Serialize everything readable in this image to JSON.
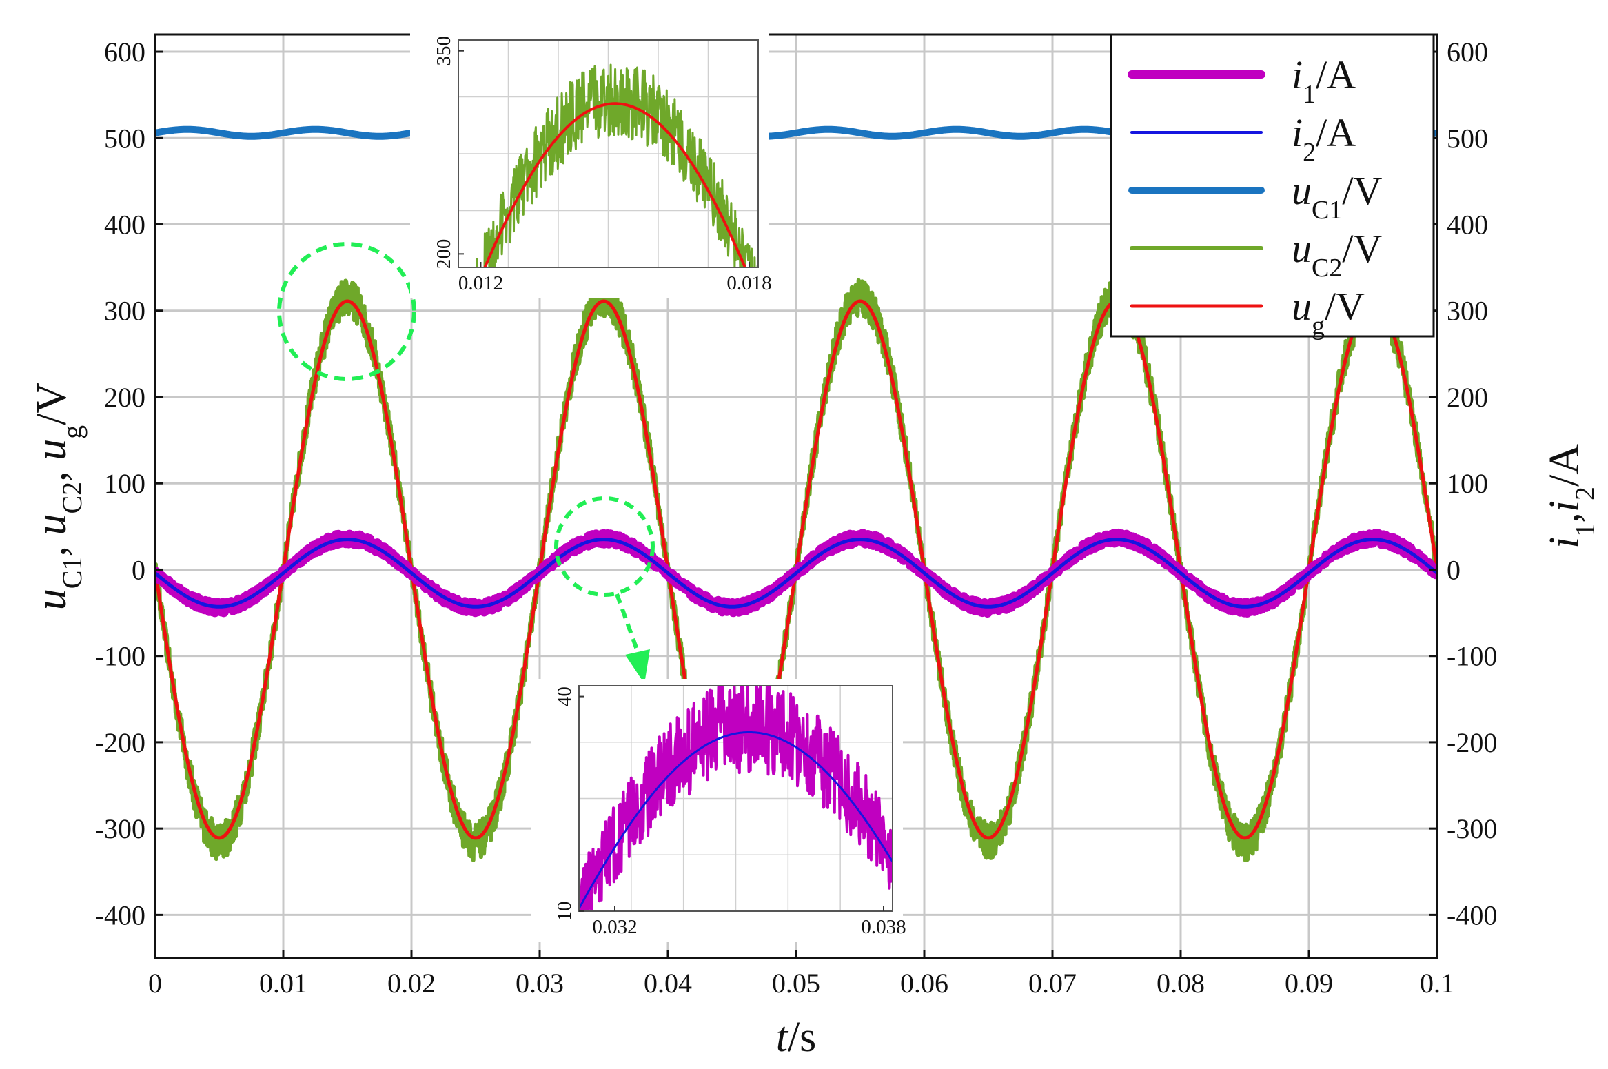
{
  "chart_data": [
    {
      "type": "line",
      "x": {
        "label_var": "t",
        "label_unit": "/s",
        "lim": [
          0,
          0.1
        ],
        "ticks": [
          "0",
          "0.01",
          "0.02",
          "0.03",
          "0.04",
          "0.05",
          "0.06",
          "0.07",
          "0.08",
          "0.09",
          "0.1"
        ]
      },
      "y_left": {
        "label": [
          "u",
          "C1",
          ", ",
          "u",
          "C2",
          ", ",
          "u",
          "g",
          "/V"
        ],
        "lim": [
          -450,
          620
        ],
        "ticks": [
          "600",
          "500",
          "400",
          "300",
          "200",
          "100",
          "0",
          "-100",
          "-200",
          "-300",
          "-400"
        ]
      },
      "y_right": {
        "label": [
          "i",
          "1",
          ",",
          "i",
          "2",
          "/A"
        ],
        "ticks": [
          "600",
          "500",
          "400",
          "300",
          "200",
          "100",
          "0",
          "-100",
          "-200",
          "-300",
          "-400"
        ]
      },
      "grid": true,
      "legend_position": "top-right",
      "series": [
        {
          "key": "i1",
          "legend": [
            "i",
            "1",
            "/A"
          ],
          "color": "#c000c0",
          "kind": "sine_ripple",
          "offset": -4,
          "amplitude": 40,
          "frequency_hz": 50,
          "phase_deg": 180,
          "ripple": 6
        },
        {
          "key": "i2",
          "legend": [
            "i",
            "2",
            "/A"
          ],
          "color": "#1515e0",
          "kind": "sine",
          "offset": -4,
          "amplitude": 39,
          "frequency_hz": 50,
          "phase_deg": 180
        },
        {
          "key": "uC1",
          "legend": [
            "u",
            "C1",
            "/V"
          ],
          "color": "#1a74c0",
          "kind": "sine",
          "offset": 506,
          "amplitude": 4,
          "frequency_hz": 100,
          "phase_deg": 0
        },
        {
          "key": "uC2",
          "legend": [
            "u",
            "C2",
            "/V"
          ],
          "color": "#6fa82a",
          "kind": "sine_ripple",
          "offset": 0,
          "amplitude": 315,
          "frequency_hz": 50,
          "phase_deg": 180,
          "ripple": 22
        },
        {
          "key": "ug",
          "legend": [
            "u",
            "g",
            "/V"
          ],
          "color": "#ee1111",
          "kind": "sine",
          "offset": 0,
          "amplitude": 311,
          "frequency_hz": 50,
          "phase_deg": 180
        }
      ]
    },
    {
      "type": "line",
      "note_text": "",
      "x": {
        "lim": [
          0.0115,
          0.0182
        ],
        "ticks": [
          "0.012",
          "0.018"
        ]
      },
      "y": {
        "lim": [
          190,
          358
        ],
        "ticks": [
          "350",
          "200"
        ]
      },
      "series": [
        "uC2",
        "ug"
      ]
    },
    {
      "type": "line",
      "x": {
        "lim": [
          0.0312,
          0.0382
        ],
        "ticks": [
          "0.032",
          "0.038"
        ]
      },
      "y": {
        "lim": [
          10,
          41.5
        ],
        "ticks": [
          "40",
          "10"
        ]
      },
      "series": [
        "i1",
        "i2"
      ]
    }
  ],
  "colors": {
    "highlight": "#22ee55"
  }
}
